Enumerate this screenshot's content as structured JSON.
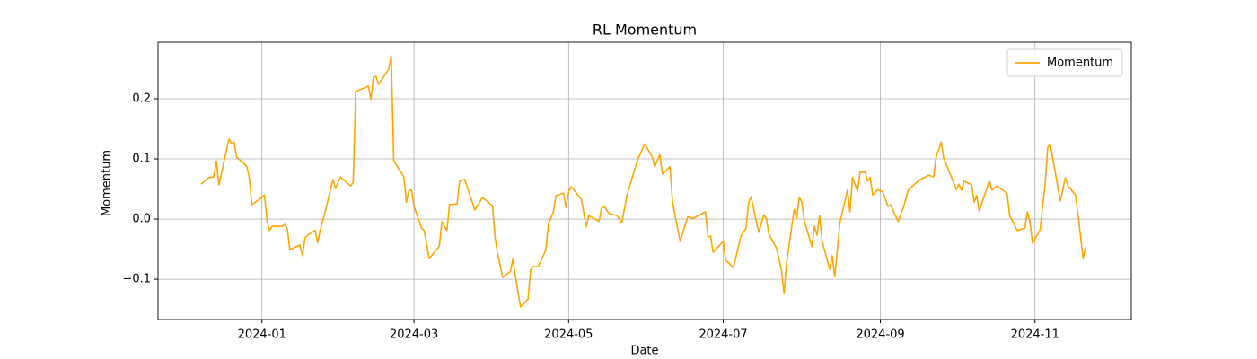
{
  "chart_data": {
    "type": "line",
    "title": "RL Momentum",
    "x_label": "Date",
    "y_label": "Momentum",
    "x": [
      "2023-12-08",
      "2023-12-11",
      "2023-12-13",
      "2023-12-14",
      "2023-12-15",
      "2023-12-19",
      "2023-12-20",
      "2023-12-21",
      "2023-12-22",
      "2023-12-26",
      "2023-12-27",
      "2023-12-28",
      "2024-01-01",
      "2024-01-02",
      "2024-01-03",
      "2024-01-04",
      "2024-01-05",
      "2024-01-09",
      "2024-01-10",
      "2024-01-11",
      "2024-01-12",
      "2024-01-16",
      "2024-01-17",
      "2024-01-18",
      "2024-01-19",
      "2024-01-22",
      "2024-01-23",
      "2024-01-24",
      "2024-01-26",
      "2024-01-29",
      "2024-01-30",
      "2024-02-01",
      "2024-02-05",
      "2024-02-06",
      "2024-02-07",
      "2024-02-12",
      "2024-02-13",
      "2024-02-14",
      "2024-02-15",
      "2024-02-16",
      "2024-02-20",
      "2024-02-21",
      "2024-02-22",
      "2024-02-26",
      "2024-02-27",
      "2024-02-28",
      "2024-02-29",
      "2024-03-01",
      "2024-03-04",
      "2024-03-05",
      "2024-03-07",
      "2024-03-11",
      "2024-03-12",
      "2024-03-14",
      "2024-03-15",
      "2024-03-18",
      "2024-03-19",
      "2024-03-21",
      "2024-03-25",
      "2024-03-28",
      "2024-04-01",
      "2024-04-02",
      "2024-04-03",
      "2024-04-05",
      "2024-04-08",
      "2024-04-09",
      "2024-04-10",
      "2024-04-12",
      "2024-04-15",
      "2024-04-16",
      "2024-04-17",
      "2024-04-19",
      "2024-04-22",
      "2024-04-23",
      "2024-04-25",
      "2024-04-26",
      "2024-04-29",
      "2024-04-30",
      "2024-05-01",
      "2024-05-02",
      "2024-05-06",
      "2024-05-08",
      "2024-05-09",
      "2024-05-13",
      "2024-05-14",
      "2024-05-15",
      "2024-05-17",
      "2024-05-20",
      "2024-05-22",
      "2024-05-24",
      "2024-05-28",
      "2024-05-31",
      "2024-06-03",
      "2024-06-04",
      "2024-06-06",
      "2024-06-07",
      "2024-06-10",
      "2024-06-11",
      "2024-06-12",
      "2024-06-14",
      "2024-06-17",
      "2024-06-19",
      "2024-06-24",
      "2024-06-25",
      "2024-06-26",
      "2024-06-27",
      "2024-07-01",
      "2024-07-02",
      "2024-07-03",
      "2024-07-05",
      "2024-07-08",
      "2024-07-10",
      "2024-07-11",
      "2024-07-12",
      "2024-07-15",
      "2024-07-17",
      "2024-07-18",
      "2024-07-19",
      "2024-07-22",
      "2024-07-24",
      "2024-07-25",
      "2024-07-26",
      "2024-07-29",
      "2024-07-30",
      "2024-07-31",
      "2024-08-01",
      "2024-08-02",
      "2024-08-05",
      "2024-08-06",
      "2024-08-07",
      "2024-08-08",
      "2024-08-09",
      "2024-08-12",
      "2024-08-13",
      "2024-08-14",
      "2024-08-16",
      "2024-08-19",
      "2024-08-20",
      "2024-08-21",
      "2024-08-23",
      "2024-08-24",
      "2024-08-26",
      "2024-08-27",
      "2024-08-28",
      "2024-08-29",
      "2024-08-31",
      "2024-09-02",
      "2024-09-04",
      "2024-09-05",
      "2024-09-08",
      "2024-09-10",
      "2024-09-12",
      "2024-09-15",
      "2024-09-17",
      "2024-09-20",
      "2024-09-22",
      "2024-09-23",
      "2024-09-25",
      "2024-09-26",
      "2024-09-29",
      "2024-10-01",
      "2024-10-02",
      "2024-10-03",
      "2024-10-04",
      "2024-10-07",
      "2024-10-08",
      "2024-10-09",
      "2024-10-10",
      "2024-10-14",
      "2024-10-15",
      "2024-10-17",
      "2024-10-21",
      "2024-10-22",
      "2024-10-25",
      "2024-10-28",
      "2024-10-29",
      "2024-10-30",
      "2024-10-31",
      "2024-11-03",
      "2024-11-05",
      "2024-11-06",
      "2024-11-07",
      "2024-11-11",
      "2024-11-13",
      "2024-11-14",
      "2024-11-17",
      "2024-11-18",
      "2024-11-20",
      "2024-11-21"
    ],
    "series": [
      {
        "name": "Momentum",
        "color": "#ffa500",
        "values": [
          0.058,
          0.069,
          0.07,
          0.096,
          0.057,
          0.133,
          0.125,
          0.128,
          0.103,
          0.088,
          0.069,
          0.024,
          0.036,
          0.04,
          -0.003,
          -0.019,
          -0.012,
          -0.012,
          -0.009,
          -0.016,
          -0.051,
          -0.043,
          -0.061,
          -0.031,
          -0.027,
          -0.019,
          -0.039,
          -0.018,
          0.013,
          0.066,
          0.051,
          0.07,
          0.055,
          0.061,
          0.212,
          0.221,
          0.199,
          0.236,
          0.237,
          0.224,
          0.249,
          0.272,
          0.097,
          0.07,
          0.028,
          0.048,
          0.048,
          0.021,
          -0.015,
          -0.019,
          -0.066,
          -0.045,
          -0.004,
          -0.019,
          0.024,
          0.025,
          0.063,
          0.066,
          0.015,
          0.036,
          0.022,
          -0.031,
          -0.058,
          -0.097,
          -0.087,
          -0.067,
          -0.094,
          -0.146,
          -0.133,
          -0.084,
          -0.079,
          -0.079,
          -0.052,
          -0.009,
          0.012,
          0.039,
          0.043,
          0.019,
          0.045,
          0.054,
          0.033,
          -0.013,
          0.006,
          -0.004,
          0.018,
          0.021,
          0.009,
          0.006,
          -0.006,
          0.039,
          0.096,
          0.125,
          0.103,
          0.087,
          0.107,
          0.075,
          0.087,
          0.028,
          0.006,
          -0.037,
          0.004,
          0.001,
          0.012,
          -0.03,
          -0.028,
          -0.055,
          -0.037,
          -0.069,
          -0.072,
          -0.081,
          -0.028,
          -0.015,
          0.027,
          0.037,
          -0.022,
          0.007,
          0.001,
          -0.025,
          -0.048,
          -0.085,
          -0.124,
          -0.073,
          0.016,
          0.001,
          0.036,
          0.028,
          -0.003,
          -0.046,
          -0.012,
          -0.027,
          0.006,
          -0.036,
          -0.084,
          -0.061,
          -0.096,
          -0.007,
          0.048,
          0.012,
          0.069,
          0.046,
          0.078,
          0.078,
          0.063,
          0.069,
          0.04,
          0.049,
          0.045,
          0.021,
          0.024,
          -0.004,
          0.018,
          0.048,
          0.06,
          0.066,
          0.073,
          0.07,
          0.103,
          0.128,
          0.101,
          0.07,
          0.049,
          0.058,
          0.048,
          0.063,
          0.057,
          0.028,
          0.039,
          0.013,
          0.064,
          0.048,
          0.055,
          0.043,
          0.006,
          -0.019,
          -0.015,
          0.012,
          -0.004,
          -0.04,
          -0.018,
          0.058,
          0.118,
          0.125,
          0.03,
          0.069,
          0.055,
          0.04,
          0.007,
          -0.066,
          -0.046
        ]
      }
    ],
    "xlim": [
      "2023-11-21",
      "2024-12-09"
    ],
    "xticks": [
      "2024-01",
      "2024-03",
      "2024-05",
      "2024-07",
      "2024-09",
      "2024-11"
    ],
    "ylim": [
      -0.167,
      0.294
    ],
    "yticks": [
      {
        "value": -0.1,
        "label": "−0.1"
      },
      {
        "value": 0,
        "label": "0.0"
      },
      0.1,
      0.2
    ],
    "grid": true,
    "legend": "upper right"
  }
}
